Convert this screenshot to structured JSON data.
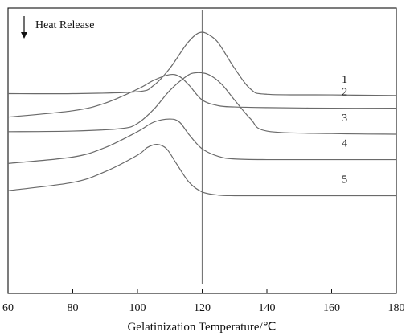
{
  "chart_data": {
    "type": "line",
    "title": "",
    "xlabel": "Gelatinization Temperature/℃",
    "ylabel": "",
    "xlim": [
      60,
      180
    ],
    "xticks": [
      60,
      80,
      100,
      120,
      140,
      160,
      180
    ],
    "grid": false,
    "annotation": "Heat Release",
    "reference_line_x": 120,
    "series": [
      {
        "name": "1",
        "x": [
          60,
          80,
          100,
          105,
          110,
          115,
          118,
          120,
          122,
          125,
          130,
          135,
          140,
          160,
          180
        ],
        "y": [
          0.65,
          0.65,
          0.68,
          0.78,
          1.05,
          1.42,
          1.58,
          1.62,
          1.58,
          1.45,
          1.05,
          0.72,
          0.64,
          0.63,
          0.62
        ]
      },
      {
        "name": "2",
        "x": [
          60,
          80,
          90,
          100,
          105,
          110,
          113,
          116,
          120,
          125,
          130,
          140,
          160,
          180
        ],
        "y": [
          0.28,
          0.38,
          0.5,
          0.72,
          0.86,
          0.95,
          0.92,
          0.78,
          0.55,
          0.46,
          0.44,
          0.43,
          0.42,
          0.42
        ]
      },
      {
        "name": "3",
        "x": [
          60,
          80,
          95,
          100,
          105,
          110,
          115,
          118,
          122,
          126,
          130,
          135,
          140,
          160,
          180
        ],
        "y": [
          0.05,
          0.06,
          0.1,
          0.18,
          0.4,
          0.7,
          0.92,
          0.98,
          0.95,
          0.8,
          0.55,
          0.25,
          0.06,
          0.02,
          0.01
        ]
      },
      {
        "name": "4",
        "x": [
          60,
          80,
          90,
          100,
          105,
          110,
          113,
          116,
          120,
          125,
          130,
          140,
          160,
          180
        ],
        "y": [
          -0.45,
          -0.35,
          -0.2,
          0.05,
          0.2,
          0.25,
          0.2,
          0.0,
          -0.22,
          -0.34,
          -0.38,
          -0.39,
          -0.39,
          -0.39
        ]
      },
      {
        "name": "5",
        "x": [
          60,
          80,
          90,
          100,
          103,
          106,
          109,
          112,
          116,
          120,
          125,
          130,
          140,
          160,
          180
        ],
        "y": [
          -0.88,
          -0.75,
          -0.58,
          -0.32,
          -0.2,
          -0.15,
          -0.22,
          -0.45,
          -0.75,
          -0.9,
          -0.95,
          -0.96,
          -0.96,
          -0.96,
          -0.96
        ]
      }
    ]
  }
}
